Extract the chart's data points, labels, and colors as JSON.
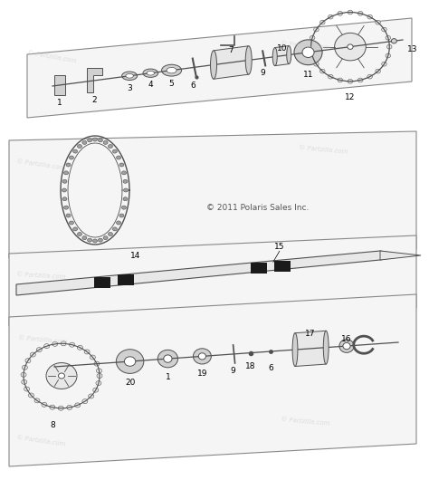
{
  "background_color": "#ffffff",
  "watermark_text": "© Partzilla.com",
  "copyright_text": "© 2011 Polaris Sales Inc.",
  "figsize": [
    4.74,
    5.3
  ],
  "dpi": 100,
  "colors": {
    "light_gray": "#d0d0d0",
    "dark_gray": "#505050",
    "mid_gray": "#a0a0a0",
    "very_light": "#e8e8e8",
    "black": "#1a1a1a",
    "white": "#ffffff",
    "platform_fill": "#f5f5f5",
    "platform_edge": "#888888"
  }
}
